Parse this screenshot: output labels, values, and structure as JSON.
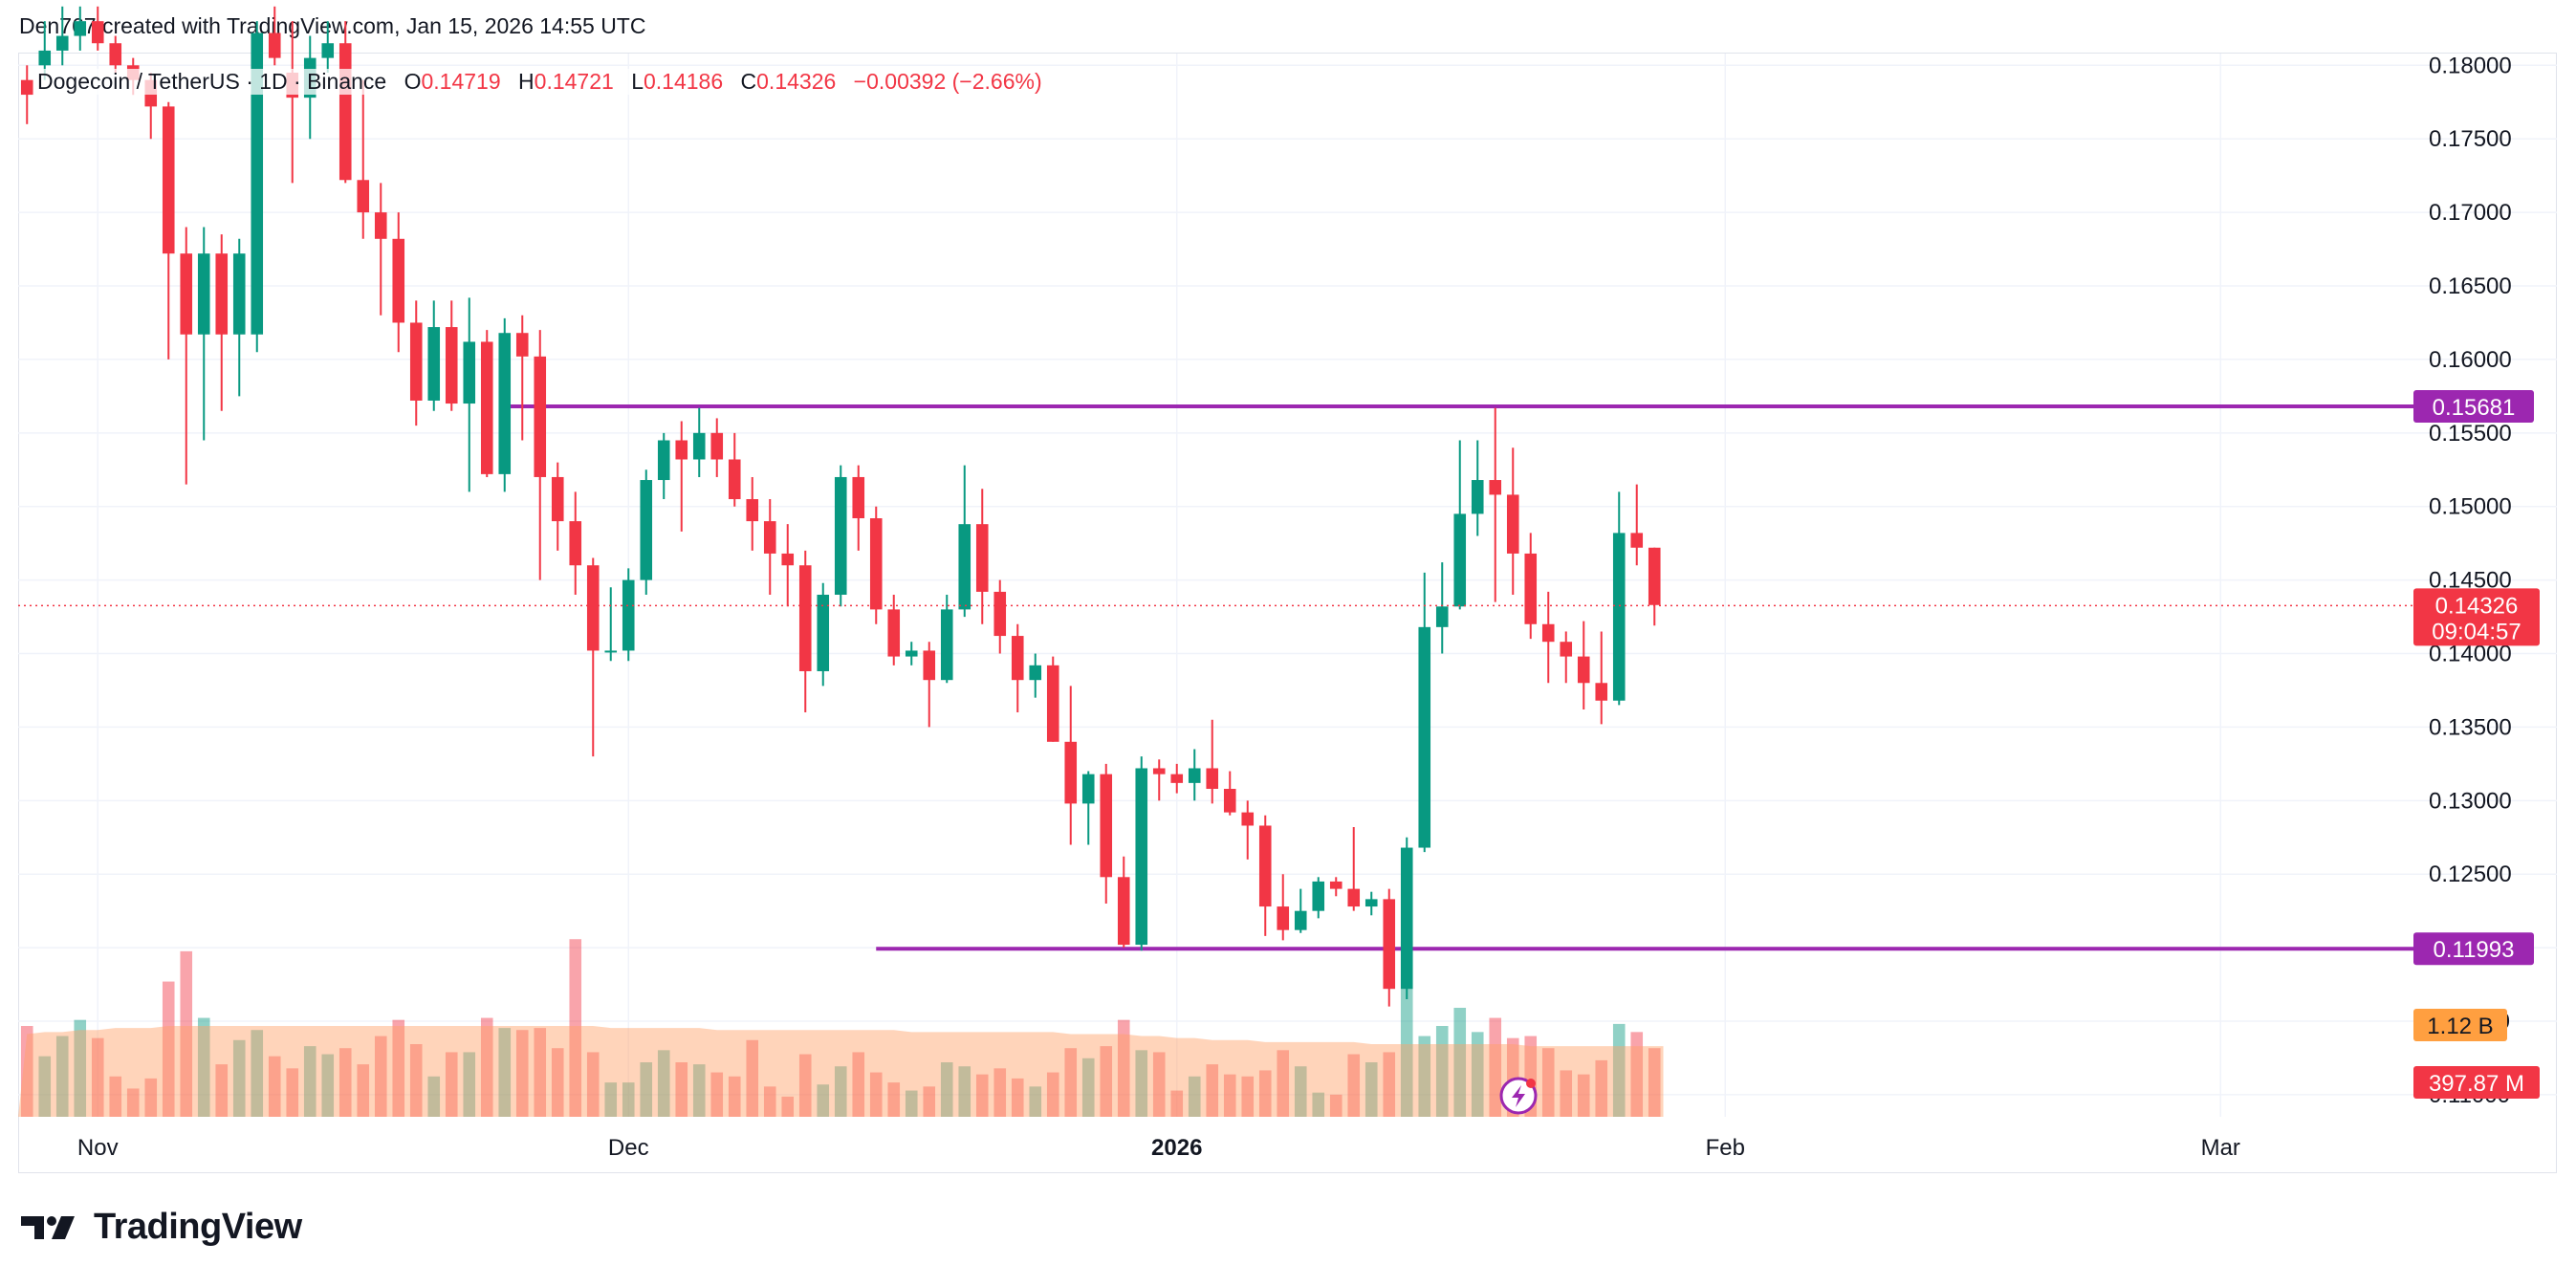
{
  "caption": "Den767 created with TradingView.com, Jan 15, 2026 14:55 UTC",
  "legend": {
    "symbol": "Dogecoin / TetherUS · 1D · Binance",
    "open_label": "O",
    "open": "0.14719",
    "high_label": "H",
    "high": "0.14721",
    "low_label": "L",
    "low": "0.14186",
    "close_label": "C",
    "close": "0.14326",
    "change": "−0.00392 (−2.66%)"
  },
  "brand": {
    "name": "TradingView",
    "logo_icon": "tradingview-logo-icon"
  },
  "colors": {
    "up": "#089981",
    "down": "#f23645",
    "level": "#9c27b0",
    "volume_ma": "#ff9f66",
    "price_badge": "#f23645"
  },
  "chart_data": {
    "type": "candlestick",
    "symbol": "DOGEUSDT",
    "timeframe": "1D",
    "y_axis": {
      "range": [
        0.1085,
        0.1808
      ],
      "ticks": [
        "0.18000",
        "0.17500",
        "0.17000",
        "0.16500",
        "0.16000",
        "0.15500",
        "0.15000",
        "0.14500",
        "0.14000",
        "0.13500",
        "0.13000",
        "0.12500",
        "0.12000",
        "0.11500",
        "0.11000"
      ],
      "tick_values": [
        0.18,
        0.175,
        0.17,
        0.165,
        0.16,
        0.155,
        0.15,
        0.145,
        0.14,
        0.135,
        0.13,
        0.125,
        0.12,
        0.115,
        0.11
      ]
    },
    "x_axis": {
      "labels": [
        {
          "text": "Nov",
          "index": 4,
          "bold": false
        },
        {
          "text": "Dec",
          "index": 34,
          "bold": false
        },
        {
          "text": "2026",
          "index": 65,
          "bold": true
        },
        {
          "text": "Feb",
          "index": 96,
          "bold": false
        },
        {
          "text": "Mar",
          "index": 124,
          "bold": false
        }
      ],
      "index_range": [
        -0.5,
        133.5
      ]
    },
    "candles": [
      [
        0.179,
        0.18,
        0.176,
        0.178,
        45
      ],
      [
        0.18,
        0.183,
        0.179,
        0.181,
        30
      ],
      [
        0.181,
        0.184,
        0.18,
        0.182,
        40
      ],
      [
        0.182,
        0.184,
        0.181,
        0.183,
        48
      ],
      [
        0.183,
        0.184,
        0.181,
        0.1815,
        39
      ],
      [
        0.1815,
        0.182,
        0.1795,
        0.18,
        20
      ],
      [
        0.18,
        0.1805,
        0.178,
        0.179,
        14
      ],
      [
        0.179,
        0.1795,
        0.175,
        0.1772,
        19
      ],
      [
        0.1772,
        0.1775,
        0.16,
        0.1672,
        67
      ],
      [
        0.1672,
        0.169,
        0.1515,
        0.1617,
        82
      ],
      [
        0.1617,
        0.169,
        0.1545,
        0.1672,
        49
      ],
      [
        0.1672,
        0.1685,
        0.1565,
        0.1617,
        26
      ],
      [
        0.1617,
        0.1682,
        0.1575,
        0.1672,
        38
      ],
      [
        0.1617,
        0.183,
        0.1605,
        0.1822,
        43
      ],
      [
        0.1822,
        0.184,
        0.18,
        0.1805,
        30
      ],
      [
        0.1795,
        0.183,
        0.172,
        0.1778,
        24
      ],
      [
        0.1778,
        0.182,
        0.175,
        0.1805,
        35
      ],
      [
        0.1805,
        0.183,
        0.1795,
        0.1815,
        31
      ],
      [
        0.1815,
        0.183,
        0.172,
        0.1722,
        34
      ],
      [
        0.1722,
        0.179,
        0.1682,
        0.17,
        26
      ],
      [
        0.17,
        0.172,
        0.163,
        0.1682,
        40
      ],
      [
        0.1682,
        0.17,
        0.1605,
        0.1625,
        48
      ],
      [
        0.1625,
        0.164,
        0.1555,
        0.1572,
        36
      ],
      [
        0.1572,
        0.164,
        0.1565,
        0.1622,
        20
      ],
      [
        0.1622,
        0.164,
        0.1565,
        0.157,
        32
      ],
      [
        0.157,
        0.1642,
        0.151,
        0.1612,
        32
      ],
      [
        0.1612,
        0.162,
        0.152,
        0.1522,
        49
      ],
      [
        0.1522,
        0.1628,
        0.151,
        0.1618,
        44
      ],
      [
        0.1618,
        0.163,
        0.1545,
        0.1602,
        43
      ],
      [
        0.1602,
        0.162,
        0.145,
        0.152,
        44
      ],
      [
        0.152,
        0.153,
        0.147,
        0.149,
        34
      ],
      [
        0.149,
        0.151,
        0.144,
        0.146,
        88
      ],
      [
        0.146,
        0.1465,
        0.133,
        0.1402,
        32
      ],
      [
        0.1402,
        0.1445,
        0.1395,
        0.1402,
        17
      ],
      [
        0.1402,
        0.1458,
        0.1395,
        0.145,
        17
      ],
      [
        0.145,
        0.1525,
        0.144,
        0.1518,
        27
      ],
      [
        0.1518,
        0.155,
        0.1505,
        0.1545,
        33
      ],
      [
        0.1545,
        0.1558,
        0.1483,
        0.1532,
        27
      ],
      [
        0.1532,
        0.1567,
        0.152,
        0.155,
        26
      ],
      [
        0.155,
        0.156,
        0.152,
        0.1532,
        22
      ],
      [
        0.1532,
        0.155,
        0.15,
        0.1505,
        20
      ],
      [
        0.1505,
        0.152,
        0.147,
        0.149,
        38
      ],
      [
        0.149,
        0.1505,
        0.144,
        0.1468,
        15
      ],
      [
        0.1468,
        0.1488,
        0.1432,
        0.146,
        10
      ],
      [
        0.146,
        0.147,
        0.136,
        0.1388,
        31
      ],
      [
        0.1388,
        0.1448,
        0.1378,
        0.144,
        16
      ],
      [
        0.144,
        0.1528,
        0.1432,
        0.152,
        25
      ],
      [
        0.152,
        0.1528,
        0.147,
        0.1492,
        32
      ],
      [
        0.1492,
        0.15,
        0.142,
        0.143,
        22
      ],
      [
        0.143,
        0.144,
        0.1392,
        0.1398,
        17
      ],
      [
        0.1398,
        0.1408,
        0.1392,
        0.1402,
        13
      ],
      [
        0.1402,
        0.1408,
        0.135,
        0.1382,
        15
      ],
      [
        0.1382,
        0.144,
        0.138,
        0.143,
        27
      ],
      [
        0.143,
        0.1528,
        0.1425,
        0.1488,
        25
      ],
      [
        0.1488,
        0.1512,
        0.142,
        0.1442,
        21
      ],
      [
        0.1442,
        0.145,
        0.14,
        0.1412,
        24
      ],
      [
        0.1412,
        0.142,
        0.136,
        0.1382,
        19
      ],
      [
        0.1382,
        0.14,
        0.137,
        0.1392,
        15
      ],
      [
        0.1392,
        0.1398,
        0.134,
        0.134,
        22
      ],
      [
        0.134,
        0.1378,
        0.127,
        0.1298,
        34
      ],
      [
        0.1298,
        0.132,
        0.127,
        0.1318,
        29
      ],
      [
        0.1318,
        0.1325,
        0.123,
        0.1248,
        35
      ],
      [
        0.1248,
        0.1262,
        0.12,
        0.1202,
        48
      ],
      [
        0.1202,
        0.133,
        0.1198,
        0.1322,
        33
      ],
      [
        0.1322,
        0.1328,
        0.13,
        0.1318,
        32
      ],
      [
        0.1318,
        0.1325,
        0.1305,
        0.1312,
        13
      ],
      [
        0.1312,
        0.1335,
        0.13,
        0.1322,
        20
      ],
      [
        0.1322,
        0.1355,
        0.1298,
        0.1308,
        26
      ],
      [
        0.1308,
        0.132,
        0.129,
        0.1292,
        21
      ],
      [
        0.1292,
        0.13,
        0.126,
        0.1283,
        20
      ],
      [
        0.1283,
        0.129,
        0.1208,
        0.1228,
        23
      ],
      [
        0.1228,
        0.125,
        0.1205,
        0.1212,
        33
      ],
      [
        0.1212,
        0.124,
        0.121,
        0.1225,
        25
      ],
      [
        0.1225,
        0.1248,
        0.122,
        0.1245,
        12
      ],
      [
        0.1245,
        0.1248,
        0.1235,
        0.124,
        11
      ],
      [
        0.124,
        0.1282,
        0.1225,
        0.1228,
        31
      ],
      [
        0.1228,
        0.1238,
        0.1222,
        0.1233,
        27
      ],
      [
        0.1233,
        0.124,
        0.116,
        0.1172,
        32
      ],
      [
        0.1172,
        0.1275,
        0.1165,
        0.1268,
        87
      ],
      [
        0.1268,
        0.1455,
        0.1265,
        0.1418,
        40
      ],
      [
        0.1418,
        0.1462,
        0.14,
        0.1432,
        45
      ],
      [
        0.1432,
        0.1545,
        0.143,
        0.1495,
        54
      ],
      [
        0.1495,
        0.1545,
        0.148,
        0.1518,
        42
      ],
      [
        0.1518,
        0.1567,
        0.1435,
        0.1508,
        49
      ],
      [
        0.1508,
        0.154,
        0.144,
        0.1468,
        39
      ],
      [
        0.1468,
        0.1482,
        0.141,
        0.142,
        40
      ],
      [
        0.142,
        0.1442,
        0.138,
        0.1408,
        34
      ],
      [
        0.1408,
        0.1415,
        0.138,
        0.1398,
        23
      ],
      [
        0.1398,
        0.1422,
        0.1362,
        0.138,
        21
      ],
      [
        0.138,
        0.1415,
        0.1352,
        0.1368,
        28
      ],
      [
        0.1368,
        0.151,
        0.1365,
        0.1482,
        46
      ],
      [
        0.1482,
        0.1515,
        0.146,
        0.1472,
        42
      ],
      [
        0.1472,
        0.1472,
        0.1419,
        0.1433,
        34
      ]
    ],
    "volume_ma": [
      41,
      42,
      42,
      43,
      43,
      44,
      44,
      44,
      45,
      45,
      45,
      45,
      45,
      45,
      45,
      45,
      45,
      45,
      45,
      45,
      45,
      45,
      45,
      45,
      45,
      45,
      45,
      45,
      45,
      45,
      45,
      45,
      45,
      44,
      44,
      44,
      44,
      44,
      44,
      43,
      43,
      43,
      43,
      43,
      43,
      43,
      43,
      43,
      43,
      43,
      42,
      42,
      42,
      42,
      42,
      42,
      42,
      42,
      42,
      41,
      41,
      41,
      41,
      40,
      40,
      39,
      39,
      38,
      38,
      38,
      37,
      37,
      37,
      37,
      37,
      37,
      36,
      36,
      36,
      36,
      36,
      36,
      36,
      36,
      36,
      35,
      35,
      35,
      35,
      35,
      35,
      35,
      35
    ],
    "volume_axis_max": 90,
    "horizontal_levels": [
      {
        "price": 0.15681,
        "label": "0.15681",
        "from_index": 27
      },
      {
        "price": 0.11993,
        "label": "0.11993",
        "from_index": 48
      }
    ],
    "current_price": {
      "price": 0.14326,
      "label": "0.14326",
      "countdown": "09:04:57"
    },
    "volume_badges": [
      {
        "label": "1.12 B",
        "color": "#ff9f40"
      },
      {
        "label": "397.87 M",
        "color": "#f23645"
      }
    ]
  }
}
